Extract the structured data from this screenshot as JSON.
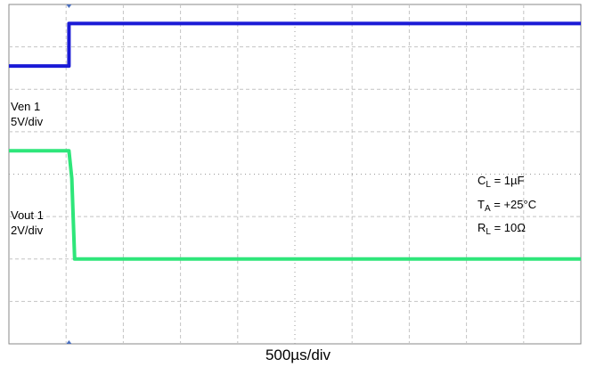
{
  "chart_data": {
    "type": "line",
    "title": "",
    "xlabel": "500µs/div",
    "ylabel": "",
    "grid": true,
    "xlim": [
      0,
      10
    ],
    "ylim": [
      0,
      8
    ],
    "x_unit": "div",
    "y_unit": "div",
    "series": [
      {
        "name": "Ven 1",
        "label_lines": [
          "Ven 1",
          "5V/div"
        ],
        "color": "#1a1ad6",
        "x": [
          0,
          1.05,
          1.05,
          10
        ],
        "y": [
          6.55,
          6.55,
          7.55,
          7.55
        ]
      },
      {
        "name": "Vout 1",
        "label_lines": [
          "Vout 1",
          "2V/div"
        ],
        "color": "#2ee67a",
        "x": [
          0,
          1.05,
          1.1,
          1.15,
          10
        ],
        "y": [
          4.55,
          4.55,
          3.9,
          2.0,
          2.0
        ]
      }
    ],
    "annotations": [
      {
        "main": "C",
        "sub": "L",
        "rest": " = 1µF"
      },
      {
        "main": "T",
        "sub": "A",
        "rest": " = +25°C"
      },
      {
        "main": "R",
        "sub": "L",
        "rest": " = 10Ω"
      }
    ]
  }
}
